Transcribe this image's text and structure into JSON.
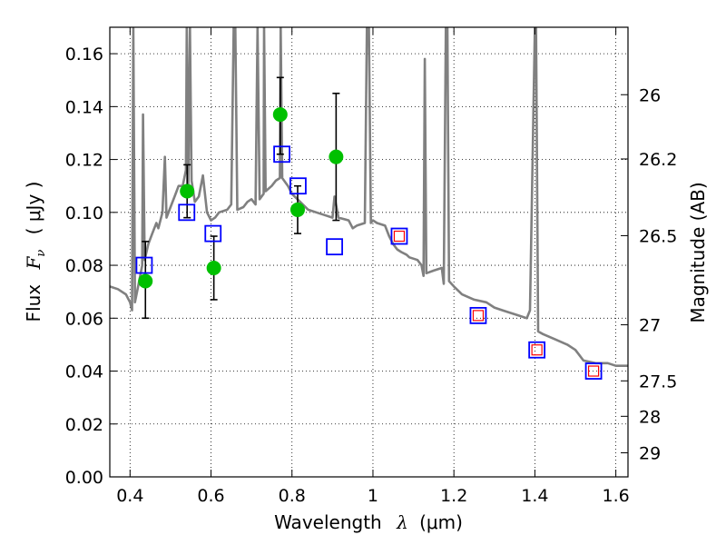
{
  "chart_data": {
    "type": "scatter",
    "xlabel_text": "Wavelength",
    "xlabel_symbol": "λ",
    "xlabel_unit": "(μm)",
    "ylabel_text": "Flux",
    "ylabel_symbol": "F",
    "ylabel_subscript": "ν",
    "ylabel_unit": "( μJy )",
    "y2label": "Magnitude (AB)",
    "xlim": [
      0.35,
      1.63
    ],
    "ylim": [
      0.0,
      0.17
    ],
    "grid": true,
    "x_ticks": [
      0.4,
      0.6,
      0.8,
      1.0,
      1.2,
      1.4,
      1.6
    ],
    "x_tick_labels": [
      "0.4",
      "0.6",
      "0.8",
      "1",
      "1.2",
      "1.4",
      "1.6"
    ],
    "y_ticks": [
      0.0,
      0.02,
      0.04,
      0.06,
      0.08,
      0.1,
      0.12,
      0.14,
      0.16
    ],
    "y_tick_labels": [
      "0.00",
      "0.02",
      "0.04",
      "0.06",
      "0.08",
      "0.10",
      "0.12",
      "0.14",
      "0.16"
    ],
    "y2_ticks": [
      {
        "label": "26",
        "flux": 0.1445
      },
      {
        "label": "26.2",
        "flux": 0.1202
      },
      {
        "label": "26.5",
        "flux": 0.0912
      },
      {
        "label": "27",
        "flux": 0.0575
      },
      {
        "label": "27.5",
        "flux": 0.0363
      },
      {
        "label": "28",
        "flux": 0.0229
      },
      {
        "label": "29",
        "flux": 0.0091
      }
    ],
    "colors": {
      "sed": "#808080",
      "observed": "#00c000",
      "errorbar": "#000000",
      "model_photometry": "#0000ff",
      "prediction": "#ff0000",
      "grid": "#000000"
    },
    "series": [
      {
        "marker": "line",
        "color": "#808080",
        "points": [
          [
            0.35,
            0.072
          ],
          [
            0.37,
            0.071
          ],
          [
            0.39,
            0.069
          ],
          [
            0.4,
            0.066
          ],
          [
            0.405,
            0.063
          ],
          [
            0.408,
            0.17
          ],
          [
            0.412,
            0.066
          ],
          [
            0.42,
            0.072
          ],
          [
            0.43,
            0.08
          ],
          [
            0.432,
            0.137
          ],
          [
            0.436,
            0.082
          ],
          [
            0.445,
            0.088
          ],
          [
            0.455,
            0.092
          ],
          [
            0.465,
            0.096
          ],
          [
            0.47,
            0.094
          ],
          [
            0.48,
            0.1
          ],
          [
            0.486,
            0.121
          ],
          [
            0.49,
            0.098
          ],
          [
            0.5,
            0.102
          ],
          [
            0.51,
            0.106
          ],
          [
            0.52,
            0.11
          ],
          [
            0.53,
            0.11
          ],
          [
            0.538,
            0.116
          ],
          [
            0.54,
            0.17
          ],
          [
            0.544,
            0.11
          ],
          [
            0.548,
            0.17
          ],
          [
            0.552,
            0.112
          ],
          [
            0.56,
            0.104
          ],
          [
            0.57,
            0.106
          ],
          [
            0.58,
            0.114
          ],
          [
            0.59,
            0.1
          ],
          [
            0.6,
            0.097
          ],
          [
            0.61,
            0.098
          ],
          [
            0.62,
            0.1
          ],
          [
            0.64,
            0.101
          ],
          [
            0.65,
            0.103
          ],
          [
            0.656,
            0.17
          ],
          [
            0.66,
            0.17
          ],
          [
            0.665,
            0.101
          ],
          [
            0.68,
            0.102
          ],
          [
            0.69,
            0.104
          ],
          [
            0.7,
            0.105
          ],
          [
            0.71,
            0.103
          ],
          [
            0.715,
            0.17
          ],
          [
            0.72,
            0.105
          ],
          [
            0.73,
            0.107
          ],
          [
            0.731,
            0.17
          ],
          [
            0.735,
            0.108
          ],
          [
            0.75,
            0.11
          ],
          [
            0.76,
            0.112
          ],
          [
            0.77,
            0.113
          ],
          [
            0.772,
            0.17
          ],
          [
            0.776,
            0.113
          ],
          [
            0.79,
            0.11
          ],
          [
            0.8,
            0.107
          ],
          [
            0.82,
            0.104
          ],
          [
            0.84,
            0.101
          ],
          [
            0.86,
            0.1
          ],
          [
            0.88,
            0.099
          ],
          [
            0.9,
            0.098
          ],
          [
            0.905,
            0.106
          ],
          [
            0.915,
            0.098
          ],
          [
            0.94,
            0.097
          ],
          [
            0.95,
            0.094
          ],
          [
            0.96,
            0.095
          ],
          [
            0.98,
            0.096
          ],
          [
            0.985,
            0.17
          ],
          [
            0.99,
            0.17
          ],
          [
            0.995,
            0.096
          ],
          [
            1.0,
            0.097
          ],
          [
            1.01,
            0.096
          ],
          [
            1.03,
            0.095
          ],
          [
            1.04,
            0.091
          ],
          [
            1.05,
            0.088
          ],
          [
            1.06,
            0.086
          ],
          [
            1.07,
            0.085
          ],
          [
            1.083,
            0.084
          ],
          [
            1.09,
            0.083
          ],
          [
            1.11,
            0.082
          ],
          [
            1.12,
            0.08
          ],
          [
            1.125,
            0.076
          ],
          [
            1.128,
            0.158
          ],
          [
            1.132,
            0.077
          ],
          [
            1.15,
            0.078
          ],
          [
            1.17,
            0.079
          ],
          [
            1.175,
            0.073
          ],
          [
            1.18,
            0.17
          ],
          [
            1.184,
            0.17
          ],
          [
            1.188,
            0.074
          ],
          [
            1.2,
            0.072
          ],
          [
            1.22,
            0.069
          ],
          [
            1.25,
            0.067
          ],
          [
            1.28,
            0.066
          ],
          [
            1.3,
            0.064
          ],
          [
            1.32,
            0.063
          ],
          [
            1.34,
            0.062
          ],
          [
            1.36,
            0.061
          ],
          [
            1.38,
            0.06
          ],
          [
            1.388,
            0.063
          ],
          [
            1.4,
            0.17
          ],
          [
            1.403,
            0.17
          ],
          [
            1.408,
            0.055
          ],
          [
            1.42,
            0.054
          ],
          [
            1.45,
            0.052
          ],
          [
            1.48,
            0.05
          ],
          [
            1.5,
            0.048
          ],
          [
            1.51,
            0.046
          ],
          [
            1.52,
            0.044
          ],
          [
            1.55,
            0.043
          ],
          [
            1.57,
            0.043
          ],
          [
            1.58,
            0.043
          ],
          [
            1.6,
            0.042
          ],
          [
            1.63,
            0.042
          ]
        ]
      },
      {
        "marker": "circle",
        "color": "#00c000",
        "points": [
          {
            "x": 0.438,
            "y": 0.074,
            "ylow": 0.06,
            "yhigh": 0.089
          },
          {
            "x": 0.541,
            "y": 0.108,
            "ylow": 0.098,
            "yhigh": 0.118
          },
          {
            "x": 0.607,
            "y": 0.079,
            "ylow": 0.067,
            "yhigh": 0.091
          },
          {
            "x": 0.771,
            "y": 0.137,
            "ylow": 0.122,
            "yhigh": 0.151
          },
          {
            "x": 0.814,
            "y": 0.101,
            "ylow": 0.092,
            "yhigh": 0.11
          },
          {
            "x": 0.909,
            "y": 0.121,
            "ylow": 0.097,
            "yhigh": 0.145
          }
        ]
      },
      {
        "marker": "square",
        "color": "#0000ff",
        "points": [
          {
            "x": 0.435,
            "y": 0.08
          },
          {
            "x": 0.54,
            "y": 0.1
          },
          {
            "x": 0.605,
            "y": 0.092
          },
          {
            "x": 0.775,
            "y": 0.122
          },
          {
            "x": 0.815,
            "y": 0.11
          },
          {
            "x": 0.905,
            "y": 0.087
          },
          {
            "x": 1.065,
            "y": 0.091
          },
          {
            "x": 1.26,
            "y": 0.061
          },
          {
            "x": 1.405,
            "y": 0.048
          },
          {
            "x": 1.545,
            "y": 0.04
          }
        ]
      },
      {
        "marker": "square",
        "color": "#ff0000",
        "points": [
          {
            "x": 1.065,
            "y": 0.091
          },
          {
            "x": 1.26,
            "y": 0.061
          },
          {
            "x": 1.405,
            "y": 0.048
          },
          {
            "x": 1.545,
            "y": 0.04
          }
        ]
      }
    ]
  }
}
